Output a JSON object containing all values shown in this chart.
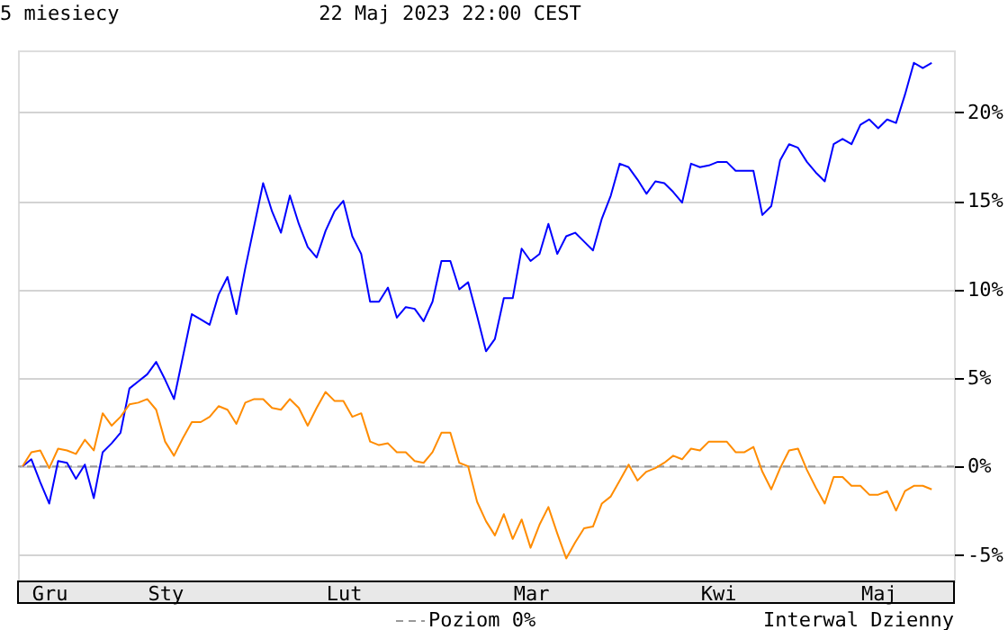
{
  "chart_data": {
    "type": "line",
    "title": "5 miesiecy",
    "subtitle": "22 Maj 2023 22:00 CEST",
    "annotations": [
      "Interwal Dzienny"
    ],
    "categories": [
      null,
      null,
      null,
      "Gru",
      null,
      null,
      null,
      null,
      null,
      null,
      null,
      null,
      null,
      null,
      null,
      null,
      "Sty",
      null,
      null,
      null,
      null,
      null,
      null,
      null,
      null,
      null,
      null,
      null,
      null,
      null,
      null,
      null,
      null,
      null,
      null,
      null,
      "Lut",
      null,
      null,
      null,
      null,
      null,
      null,
      null,
      null,
      null,
      null,
      null,
      null,
      null,
      null,
      null,
      null,
      null,
      null,
      null,
      null,
      "Mar",
      null,
      null,
      null,
      null,
      null,
      null,
      null,
      null,
      null,
      null,
      null,
      null,
      null,
      null,
      null,
      null,
      null,
      null,
      null,
      null,
      "Kwi",
      null,
      null,
      null,
      null,
      null,
      null,
      null,
      null,
      null,
      null,
      null,
      null,
      null,
      null,
      null,
      null,
      null,
      "Maj",
      null,
      null,
      null,
      null,
      null,
      null
    ],
    "ylim": [
      -6.5,
      23.5
    ],
    "yticks": [
      {
        "value": -5,
        "label": "-5%"
      },
      {
        "value": 0,
        "label": "0%"
      },
      {
        "value": 5,
        "label": "5%"
      },
      {
        "value": 10,
        "label": "10%"
      },
      {
        "value": 15,
        "label": "15%"
      },
      {
        "value": 20,
        "label": "20%"
      }
    ],
    "grid": "y",
    "marker": "none",
    "line_style": "solid",
    "ref_lines": [
      {
        "axis": "y",
        "value": 0,
        "label": "Poziom 0%",
        "color": "#999999",
        "line_style": "dashed"
      }
    ],
    "series": [
      {
        "color": "#0000ff",
        "values": [
          0,
          0.4,
          -0.9,
          -2.1,
          0.3,
          0.2,
          -0.7,
          0.1,
          -1.8,
          0.8,
          1.3,
          1.9,
          4.4,
          4.8,
          5.2,
          5.9,
          4.9,
          3.8,
          6.2,
          8.6,
          8.3,
          8.0,
          9.7,
          10.7,
          8.6,
          11.2,
          13.6,
          16.0,
          14.4,
          13.2,
          15.3,
          13.7,
          12.4,
          11.8,
          13.3,
          14.4,
          15.0,
          13.0,
          12.0,
          9.3,
          9.3,
          10.1,
          8.4,
          9.0,
          8.9,
          8.2,
          9.3,
          11.6,
          11.6,
          10.0,
          10.4,
          8.5,
          6.5,
          7.2,
          9.5,
          9.5,
          12.3,
          11.6,
          12.0,
          13.7,
          12.0,
          13.0,
          13.2,
          12.7,
          12.2,
          14.0,
          15.3,
          17.1,
          16.9,
          16.2,
          15.4,
          16.1,
          16.0,
          15.5,
          14.9,
          17.1,
          16.9,
          17.0,
          17.2,
          17.2,
          16.7,
          16.7,
          16.7,
          14.2,
          14.7,
          17.3,
          18.2,
          18.0,
          17.2,
          16.6,
          16.1,
          18.2,
          18.5,
          18.2,
          19.3,
          19.6,
          19.1,
          19.6,
          19.4,
          21.0,
          22.8,
          22.5,
          22.8
        ]
      },
      {
        "color": "#ff8c00",
        "values": [
          0,
          0.8,
          0.9,
          -0.1,
          1.0,
          0.9,
          0.7,
          1.5,
          0.9,
          3.0,
          2.3,
          2.8,
          3.5,
          3.6,
          3.8,
          3.2,
          1.4,
          0.6,
          1.6,
          2.5,
          2.5,
          2.8,
          3.4,
          3.2,
          2.4,
          3.6,
          3.8,
          3.8,
          3.3,
          3.2,
          3.8,
          3.3,
          2.3,
          3.3,
          4.2,
          3.7,
          3.7,
          2.8,
          3.0,
          1.4,
          1.2,
          1.3,
          0.8,
          0.8,
          0.3,
          0.2,
          0.8,
          1.9,
          1.9,
          0.2,
          0,
          -2.0,
          -3.1,
          -3.9,
          -2.7,
          -4.1,
          -3.0,
          -4.6,
          -3.3,
          -2.3,
          -3.8,
          -5.2,
          -4.3,
          -3.5,
          -3.4,
          -2.1,
          -1.7,
          -0.8,
          0.1,
          -0.8,
          -0.3,
          -0.1,
          0.2,
          0.6,
          0.4,
          1.0,
          0.9,
          1.4,
          1.4,
          1.4,
          0.8,
          0.8,
          1.1,
          -0.3,
          -1.3,
          -0.1,
          0.9,
          1.0,
          -0.2,
          -1.2,
          -2.1,
          -0.6,
          -0.6,
          -1.1,
          -1.1,
          -1.6,
          -1.6,
          -1.4,
          -2.5,
          -1.4,
          -1.1,
          -1.1,
          -1.3
        ]
      }
    ]
  }
}
